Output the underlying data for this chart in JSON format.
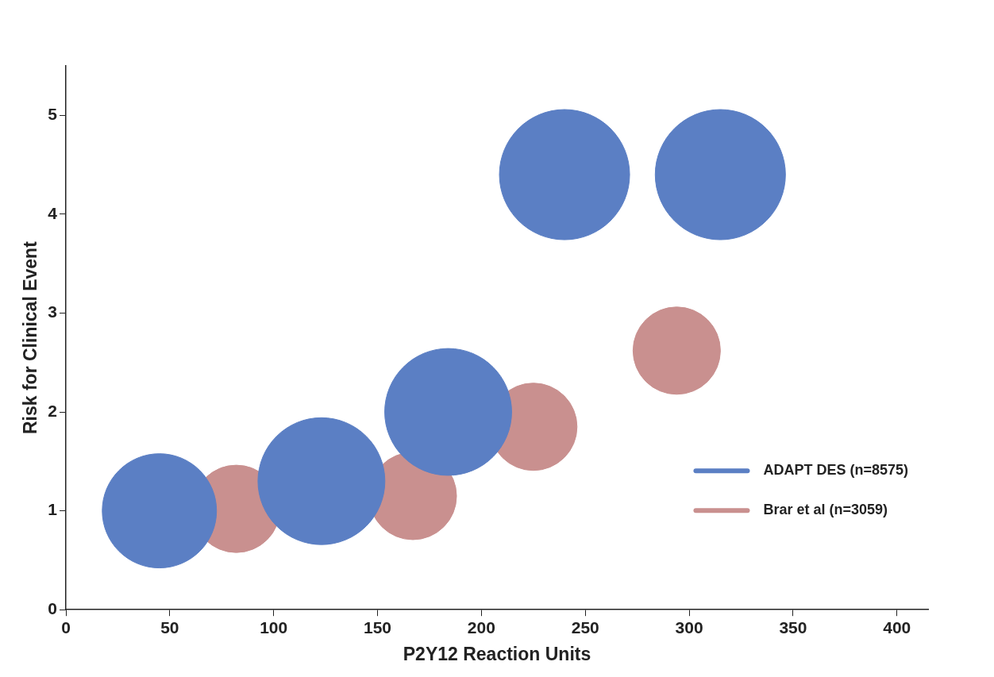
{
  "chart_data": {
    "type": "bubble",
    "xlabel": "P2Y12 Reaction Units",
    "ylabel": "Risk for Clinical Event",
    "xlim": [
      0,
      415
    ],
    "ylim": [
      0,
      5.5
    ],
    "xticks": [
      0,
      50,
      100,
      150,
      200,
      250,
      300,
      350,
      400
    ],
    "yticks": [
      0,
      1,
      2,
      3,
      4,
      5
    ],
    "grid": false,
    "legend": "bottom right",
    "series": [
      {
        "name": "ADAPT DES (n=8575)",
        "color": "#5b7fc4",
        "x": [
          45,
          123,
          184,
          240,
          315
        ],
        "values": [
          1.0,
          1.3,
          2.0,
          4.4,
          4.4
        ],
        "sizes": [
          0.77,
          0.95,
          0.95,
          1,
          1
        ]
      },
      {
        "name": "Brar et al (n=3059)",
        "color": "#c9908f",
        "x": [
          82,
          167,
          225,
          294
        ],
        "values": [
          1.02,
          1.15,
          1.85,
          2.62
        ],
        "sizes": [
          0.45,
          0.45,
          0.45,
          0.45
        ]
      }
    ]
  }
}
